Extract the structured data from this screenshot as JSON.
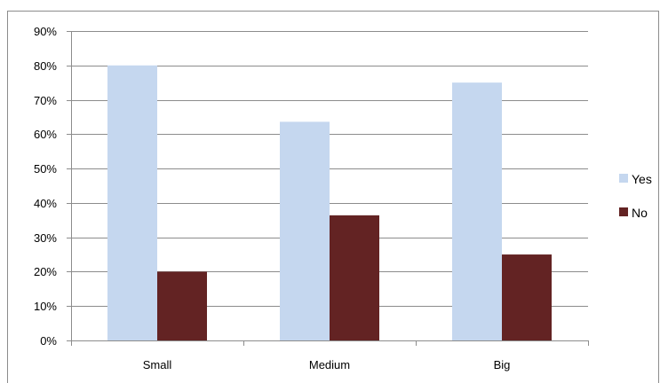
{
  "chart_data": {
    "type": "bar",
    "title": "",
    "xlabel": "",
    "ylabel": "",
    "categories": [
      "Small",
      "Medium",
      "Big"
    ],
    "series": [
      {
        "name": "Yes",
        "values": [
          80,
          63.6,
          75
        ],
        "color": "#c5d7ef"
      },
      {
        "name": "No",
        "values": [
          20,
          36.4,
          25
        ],
        "color": "#632323"
      }
    ],
    "ylim": [
      0,
      90
    ],
    "yticks": [
      0,
      10,
      20,
      30,
      40,
      50,
      60,
      70,
      80,
      90
    ],
    "ytick_labels": [
      "0%",
      "10%",
      "20%",
      "30%",
      "40%",
      "50%",
      "60%",
      "70%",
      "80%",
      "90%"
    ],
    "grid": true,
    "legend_position": "right"
  }
}
